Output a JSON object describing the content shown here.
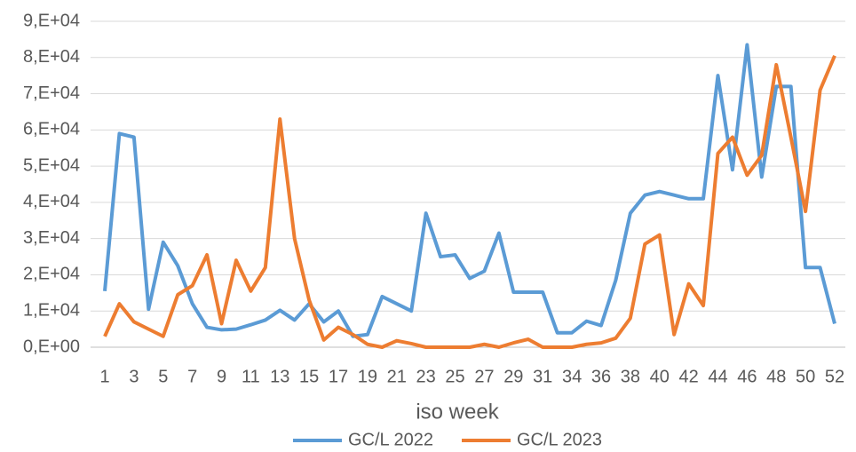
{
  "chart_data": {
    "type": "line",
    "x_label": "iso week",
    "categories": [
      1,
      null,
      3,
      null,
      5,
      null,
      7,
      null,
      9,
      null,
      11,
      null,
      13,
      null,
      15,
      null,
      17,
      null,
      19,
      null,
      21,
      null,
      23,
      null,
      25,
      null,
      27,
      null,
      29,
      null,
      31,
      null,
      34,
      null,
      36,
      null,
      38,
      null,
      40,
      null,
      42,
      null,
      44,
      null,
      46,
      null,
      48,
      null,
      50,
      null,
      52
    ],
    "series": [
      {
        "name": "GC/L 2022",
        "color": "#5b9bd5",
        "values": [
          15500,
          59000,
          58000,
          10500,
          29000,
          22500,
          12000,
          5500,
          4800,
          5000,
          6200,
          7500,
          10200,
          7500,
          12000,
          7000,
          10000,
          3000,
          3500,
          14000,
          12000,
          10000,
          37000,
          25000,
          25500,
          19000,
          21000,
          31500,
          15200,
          15200,
          15200,
          4000,
          4000,
          7200,
          6000,
          18500,
          37000,
          42000,
          43000,
          42000,
          41000,
          41000,
          75000,
          49000,
          83500,
          47000,
          72000,
          72000,
          22000,
          22000,
          6500
        ]
      },
      {
        "name": "GC/L 2023",
        "color": "#ed7d31",
        "values": [
          3000,
          12000,
          7000,
          5000,
          3000,
          14500,
          17000,
          25500,
          6500,
          24000,
          15500,
          22000,
          63000,
          30000,
          13000,
          2000,
          5500,
          3500,
          800,
          0,
          1800,
          1000,
          0,
          0,
          0,
          0,
          800,
          0,
          1200,
          2200,
          0,
          0,
          0,
          800,
          1200,
          2500,
          8000,
          28500,
          31000,
          3500,
          17500,
          11500,
          53500,
          58000,
          47500,
          53000,
          78000,
          58000,
          37500,
          71000,
          80500
        ]
      }
    ],
    "ylim": [
      0,
      90000
    ],
    "yticks": [
      {
        "value": 0,
        "label": "0,E+00"
      },
      {
        "value": 10000,
        "label": "1,E+04"
      },
      {
        "value": 20000,
        "label": "2,E+04"
      },
      {
        "value": 30000,
        "label": "3,E+04"
      },
      {
        "value": 40000,
        "label": "4,E+04"
      },
      {
        "value": 50000,
        "label": "5,E+04"
      },
      {
        "value": 60000,
        "label": "6,E+04"
      },
      {
        "value": 70000,
        "label": "7,E+04"
      },
      {
        "value": 80000,
        "label": "8,E+04"
      },
      {
        "value": 90000,
        "label": "9,E+04"
      }
    ],
    "grid": true,
    "legend": "bottom"
  }
}
